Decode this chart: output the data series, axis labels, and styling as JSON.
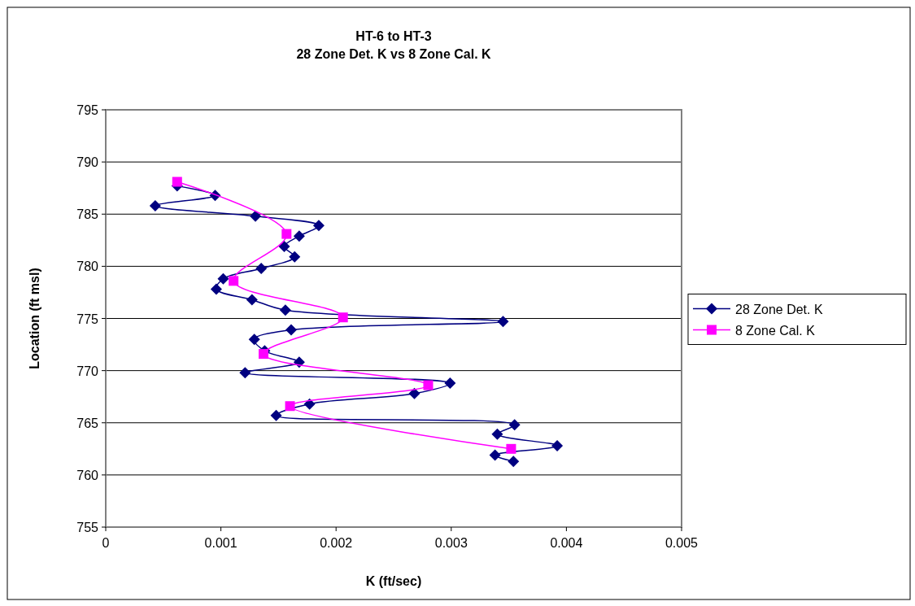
{
  "chart_data": {
    "type": "line",
    "title": "HT-6 to HT-3\n28 Zone Det. K vs 8 Zone Cal. K",
    "xlabel": "K (ft/sec)",
    "ylabel": "Location (ft msl)",
    "xlim": [
      0,
      0.005
    ],
    "xticks": [
      0,
      0.001,
      0.002,
      0.003,
      0.004,
      0.005
    ],
    "ylim": [
      755,
      795
    ],
    "yticks": [
      755,
      760,
      765,
      770,
      775,
      780,
      785,
      790,
      795
    ],
    "grid": "y",
    "legend": "right",
    "series": [
      {
        "name": "28 Zone Det. K",
        "color": "#000080",
        "marker": "diamond",
        "x": [
          0.00062,
          0.00095,
          0.00043,
          0.0013,
          0.00185,
          0.00168,
          0.00155,
          0.00164,
          0.00135,
          0.00102,
          0.00096,
          0.00127,
          0.00156,
          0.00345,
          0.00161,
          0.00129,
          0.00138,
          0.00168,
          0.00121,
          0.00299,
          0.00268,
          0.00177,
          0.00148,
          0.00355,
          0.0034,
          0.00392,
          0.00338,
          0.00354
        ],
        "values": [
          787.7,
          786.8,
          785.8,
          784.8,
          783.9,
          782.9,
          781.9,
          780.9,
          779.8,
          778.8,
          777.8,
          776.8,
          775.8,
          774.7,
          773.9,
          773.0,
          771.9,
          770.8,
          769.8,
          768.8,
          767.8,
          766.8,
          765.7,
          764.8,
          763.9,
          762.8,
          761.9,
          761.3
        ]
      },
      {
        "name": "8 Zone Cal. K",
        "color": "#ff00ff",
        "marker": "square",
        "x": [
          0.00062,
          0.00157,
          0.00111,
          0.00206,
          0.00137,
          0.0028,
          0.0016,
          0.00352
        ],
        "values": [
          788.1,
          783.1,
          778.6,
          775.1,
          771.6,
          768.6,
          766.6,
          762.5
        ]
      }
    ]
  }
}
